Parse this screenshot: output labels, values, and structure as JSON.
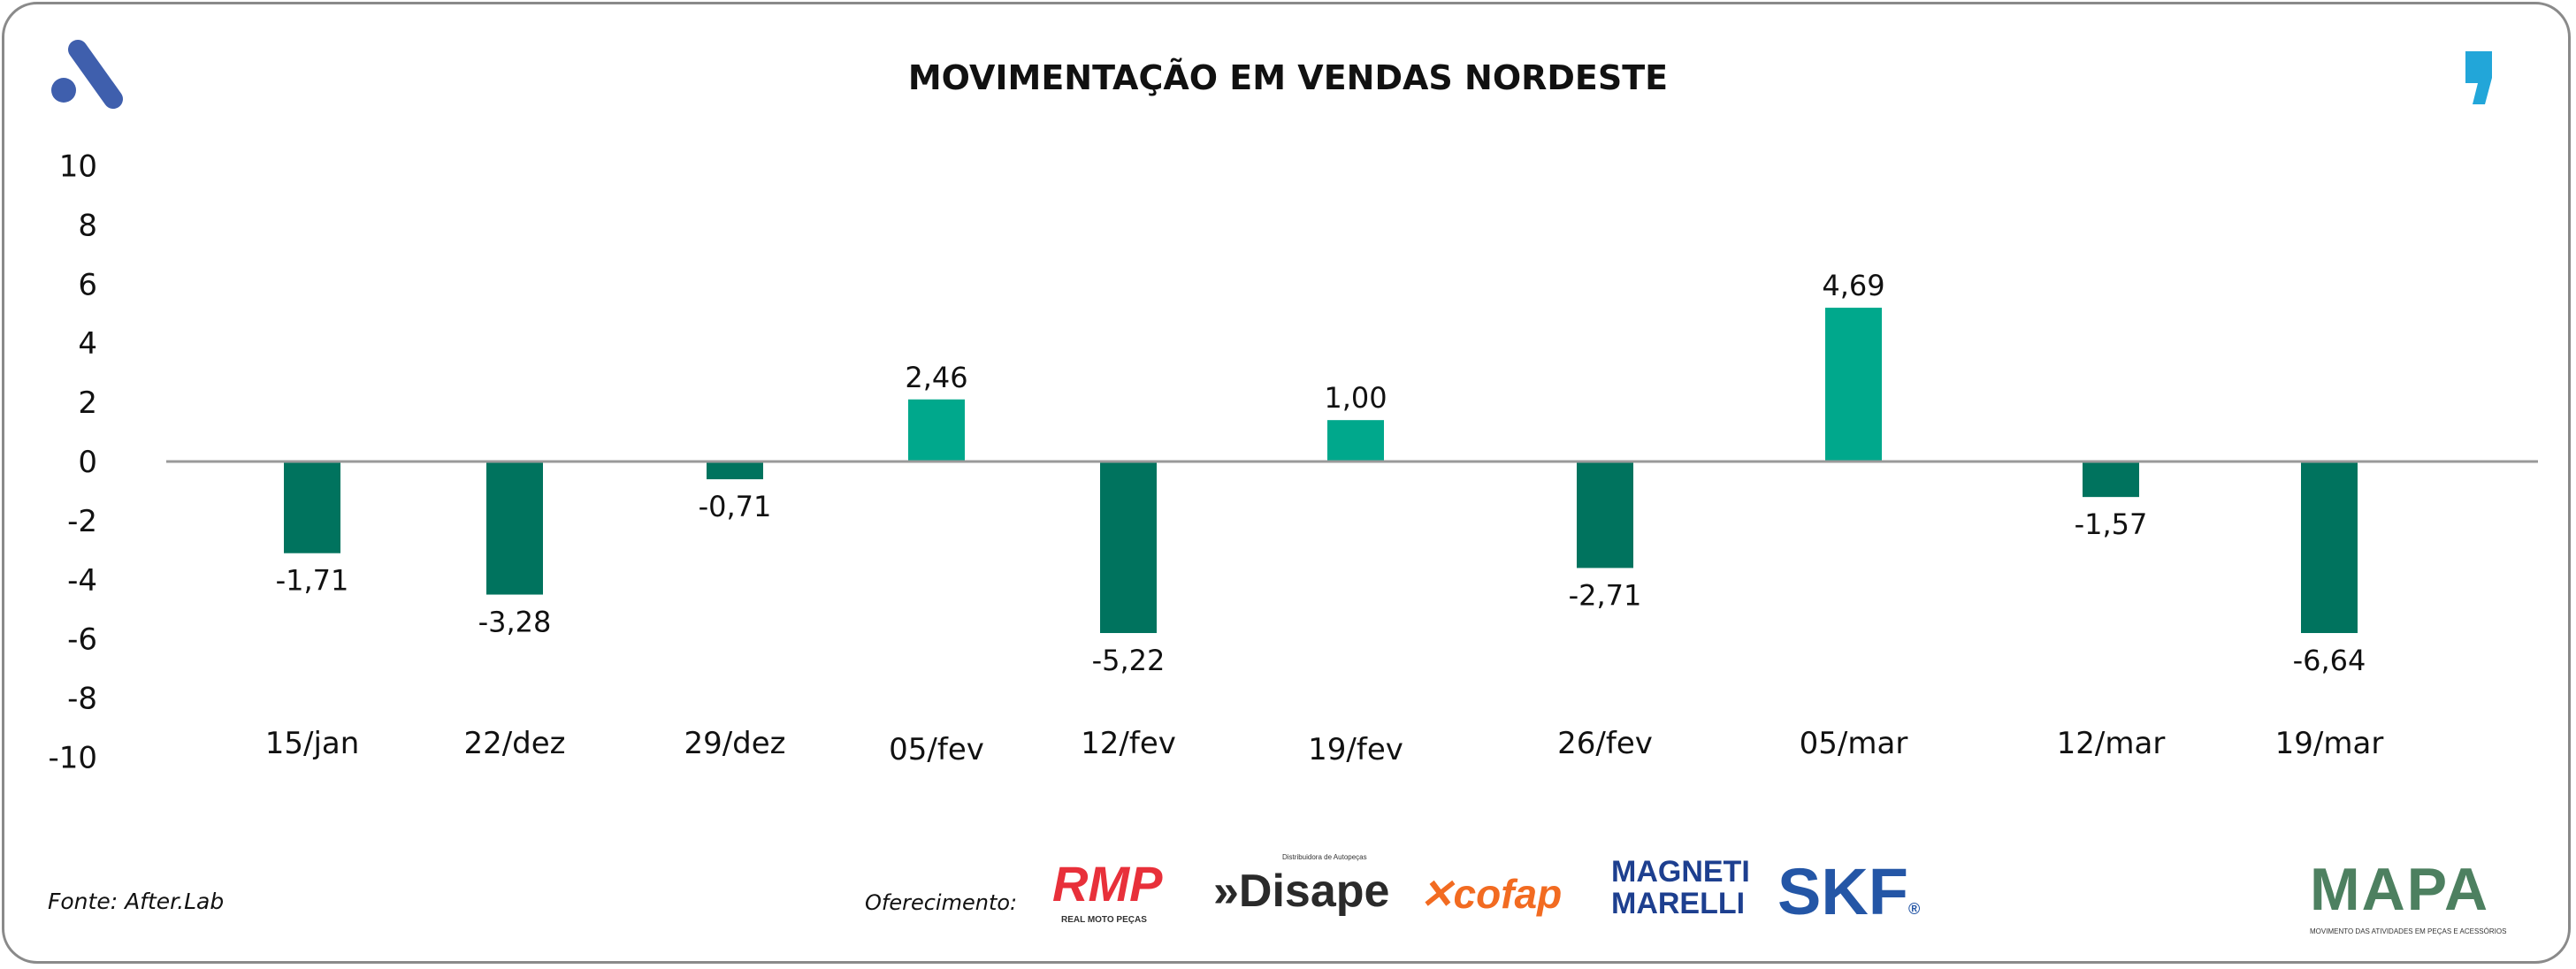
{
  "header": {
    "title": "MOVIMENTAÇÃO EM VENDAS NORDESTE"
  },
  "footer": {
    "source": "Fonte: After.Lab",
    "offer_label": "Oferecimento:",
    "sponsors": [
      "RMP",
      "REAL MOTO PEÇAS",
      "Disape",
      "Distribuidora de Autopeças",
      "cofap",
      "MAGNETI MARELLI",
      "SKF",
      "MAPA",
      "MOVIMENTO DAS ATIVIDADES EM PEÇAS E ACESSÓRIOS"
    ]
  },
  "colors": {
    "positive": "#00a88c",
    "negative": "#00735e",
    "axis": "#9a9a9a",
    "brand_left": "#3f5fad",
    "brand_right": "#22a6d9"
  },
  "chart_data": {
    "type": "bar",
    "title": "MOVIMENTAÇÃO EM VENDAS NORDESTE",
    "xlabel": "",
    "ylabel": "",
    "ylim": [
      -10,
      10
    ],
    "yticks": [
      10,
      8,
      6,
      4,
      2,
      0,
      -2,
      -4,
      -6,
      -8,
      -10
    ],
    "categories": [
      "15/jan",
      "22/dez",
      "29/dez",
      "05/fev",
      "12/fev",
      "19/fev",
      "26/fev",
      "05/mar",
      "12/mar",
      "19/mar"
    ],
    "values": [
      -1.71,
      -3.28,
      -0.71,
      2.46,
      -5.22,
      1.0,
      -2.71,
      4.69,
      -1.57,
      -6.64
    ],
    "data_labels": [
      "-1,71",
      "-3,28",
      "-0,71",
      "2,46",
      "-5,22",
      "1,00",
      "-2,71",
      "4,69",
      "-1,57",
      "-6,64"
    ],
    "bar_heights_drawn": [
      -3.1,
      -4.5,
      -0.6,
      2.1,
      -5.8,
      1.4,
      -3.6,
      5.2,
      -1.2,
      -5.8
    ],
    "grid": false,
    "legend": "none"
  }
}
